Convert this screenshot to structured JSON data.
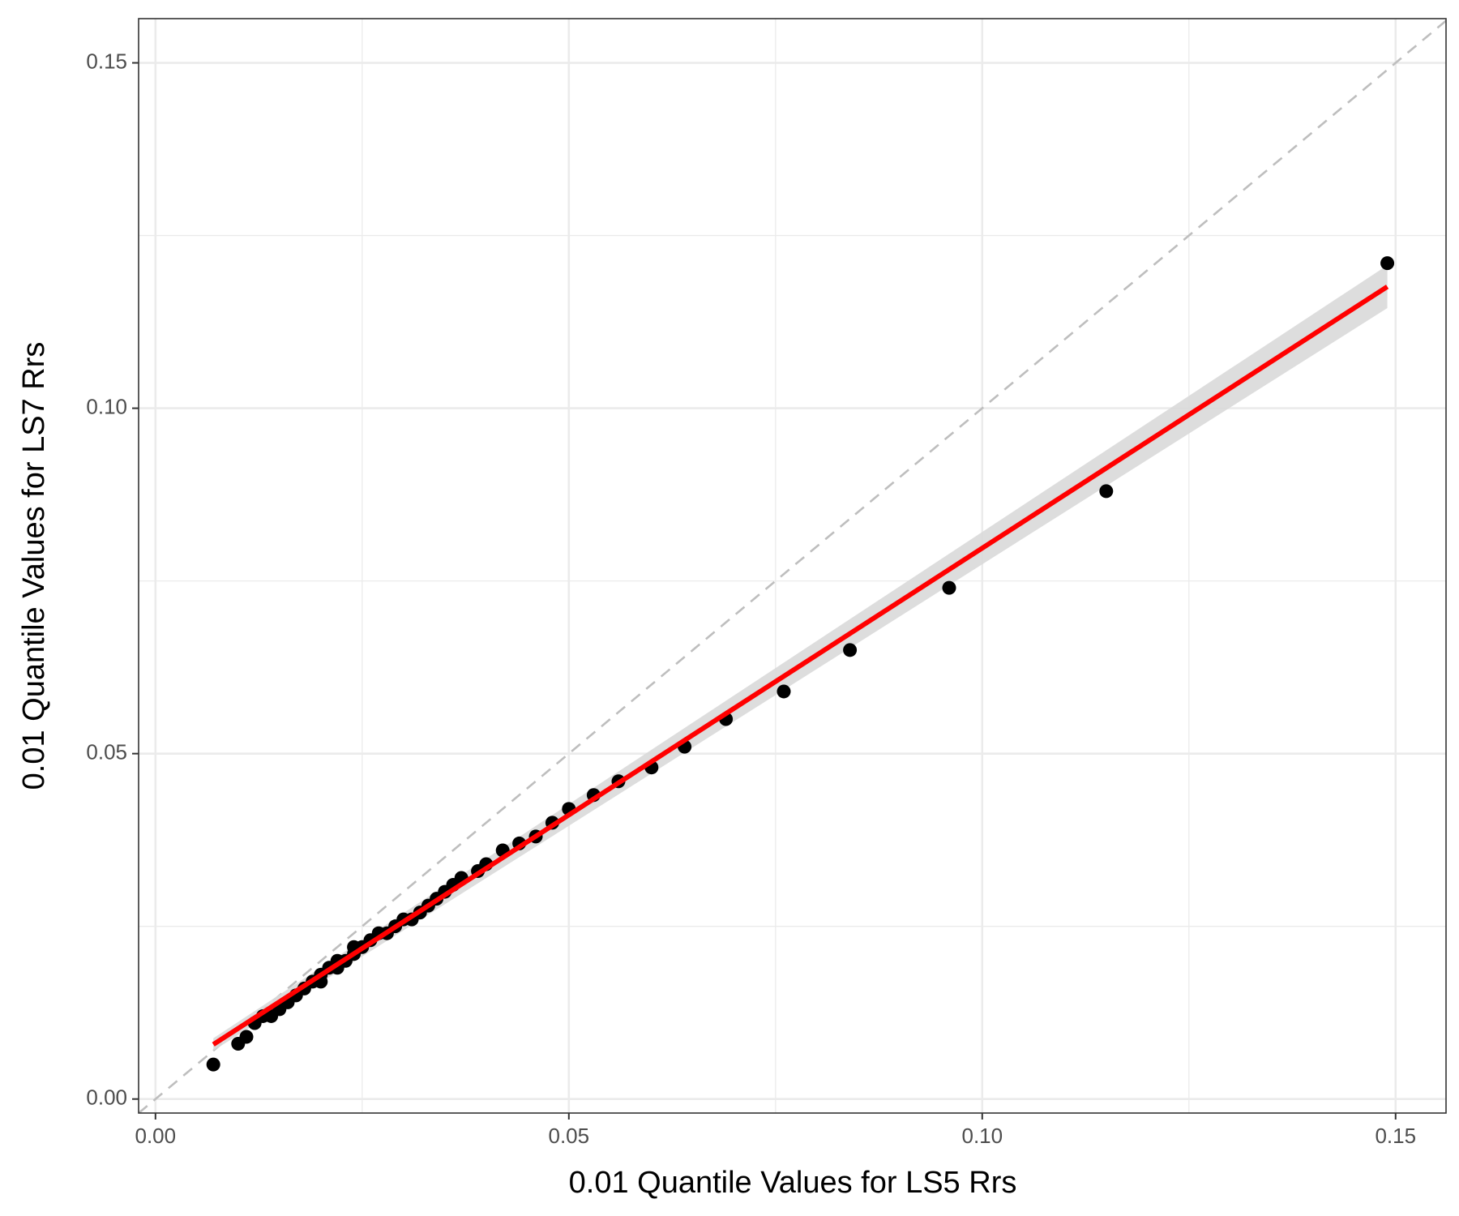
{
  "chart_data": {
    "type": "scatter",
    "x_label": "0.01 Quantile Values for LS5 Rrs",
    "y_label": "0.01 Quantile Values for LS7 Rrs",
    "x": [
      0.007,
      0.01,
      0.011,
      0.012,
      0.013,
      0.014,
      0.015,
      0.016,
      0.017,
      0.018,
      0.019,
      0.02,
      0.02,
      0.021,
      0.022,
      0.022,
      0.023,
      0.024,
      0.024,
      0.025,
      0.026,
      0.027,
      0.028,
      0.029,
      0.03,
      0.031,
      0.032,
      0.033,
      0.034,
      0.035,
      0.036,
      0.037,
      0.039,
      0.04,
      0.042,
      0.044,
      0.046,
      0.048,
      0.05,
      0.053,
      0.056,
      0.06,
      0.064,
      0.069,
      0.076,
      0.084,
      0.096,
      0.115,
      0.149
    ],
    "values": [
      0.005,
      0.008,
      0.009,
      0.011,
      0.012,
      0.012,
      0.013,
      0.014,
      0.015,
      0.016,
      0.017,
      0.017,
      0.018,
      0.019,
      0.02,
      0.019,
      0.02,
      0.021,
      0.022,
      0.022,
      0.023,
      0.024,
      0.024,
      0.025,
      0.026,
      0.026,
      0.027,
      0.028,
      0.029,
      0.03,
      0.031,
      0.032,
      0.033,
      0.034,
      0.036,
      0.037,
      0.038,
      0.04,
      0.042,
      0.044,
      0.046,
      0.048,
      0.051,
      0.055,
      0.059,
      0.065,
      0.074,
      0.088,
      0.121
    ],
    "color": "#000000",
    "fit": {
      "x": [
        0.007,
        0.149
      ],
      "values": [
        0.0079,
        0.1176
      ],
      "lower": [
        0.007,
        0.1145
      ],
      "upper": [
        0.0088,
        0.1207
      ],
      "color": "#ff0000",
      "band_color": "#d9d9d9"
    },
    "reference_line": {
      "slope": 1,
      "intercept": 0,
      "color": "#bebebe",
      "dashed": true
    },
    "xlim": [
      -0.00204,
      0.1561
    ],
    "ylim": [
      -0.00203,
      0.1564
    ],
    "xticks": [
      {
        "value": 0,
        "label": "0.00"
      },
      {
        "value": 0.05,
        "label": "0.05"
      },
      {
        "value": 0.1,
        "label": "0.10"
      },
      {
        "value": 0.15,
        "label": "0.15"
      }
    ],
    "yticks": [
      {
        "value": 0,
        "label": "0.00"
      },
      {
        "value": 0.05,
        "label": "0.05"
      },
      {
        "value": 0.1,
        "label": "0.10"
      },
      {
        "value": 0.15,
        "label": "0.15"
      }
    ],
    "minor_xticks": [
      0.025,
      0.075,
      0.125
    ],
    "minor_yticks": [
      0.025,
      0.075,
      0.125
    ],
    "grid": true
  }
}
